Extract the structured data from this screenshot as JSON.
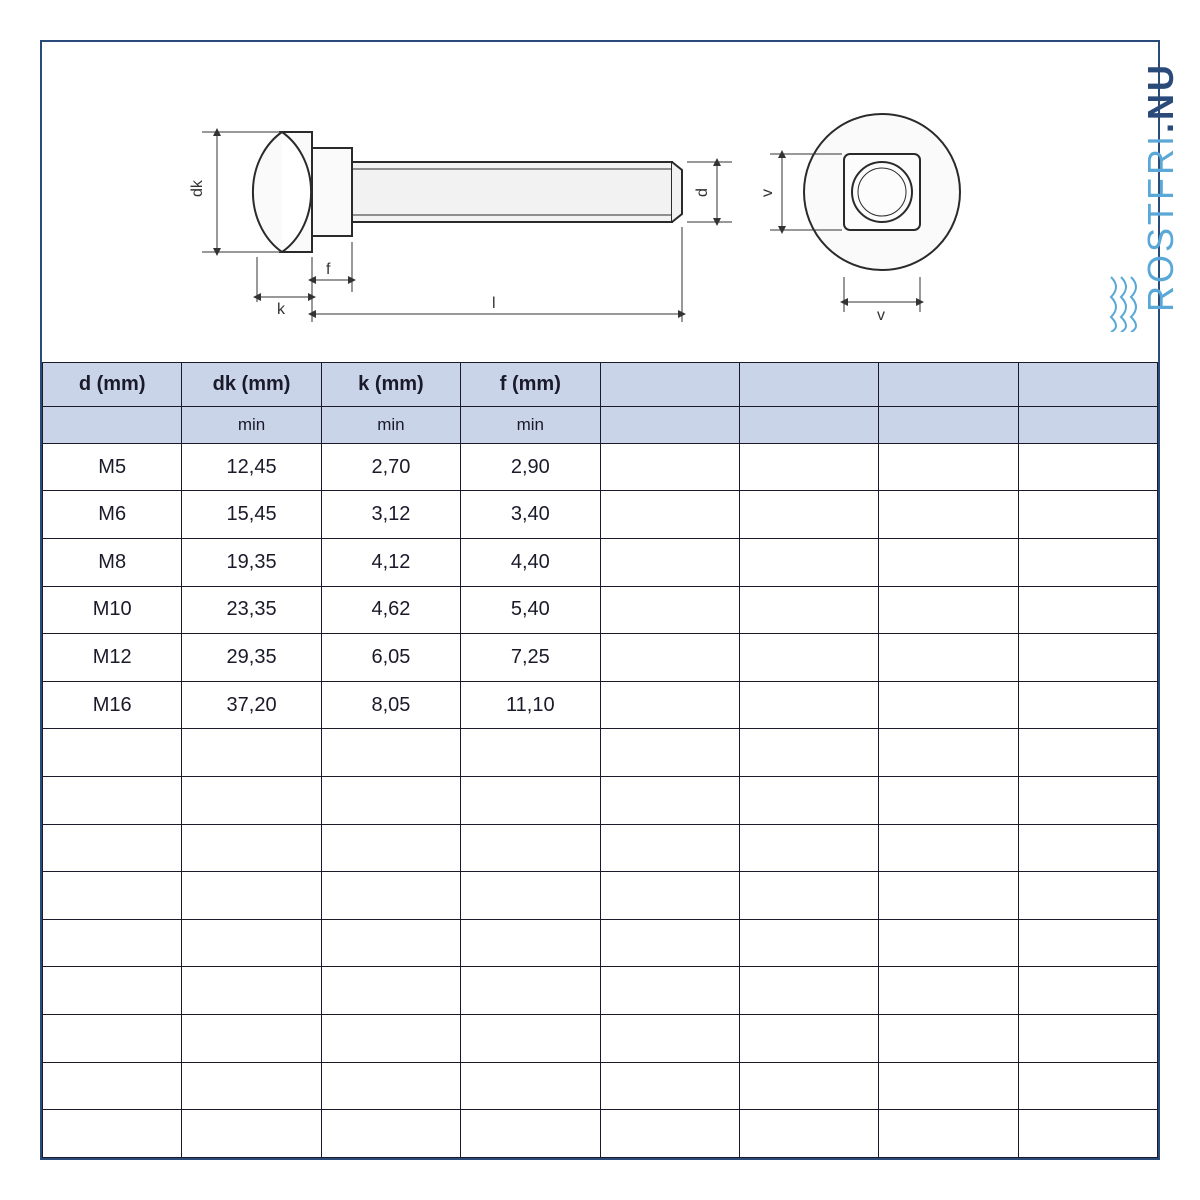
{
  "logo": {
    "main": "ROSTFRI",
    "dot": ".",
    "suffix": "NU"
  },
  "diagram": {
    "labels": {
      "dk": "dk",
      "k": "k",
      "f": "f",
      "l": "l",
      "d": "d",
      "v": "v"
    },
    "colors": {
      "stroke": "#2a2a2a",
      "fill_light": "#f8f8f8",
      "fill_grey": "#d0d0d0"
    }
  },
  "table": {
    "columns": [
      {
        "label": "d (mm)",
        "sub": ""
      },
      {
        "label": "dk (mm)",
        "sub": "min"
      },
      {
        "label": "k (mm)",
        "sub": "min"
      },
      {
        "label": "f (mm)",
        "sub": "min"
      },
      {
        "label": "",
        "sub": ""
      },
      {
        "label": "",
        "sub": ""
      },
      {
        "label": "",
        "sub": ""
      },
      {
        "label": "",
        "sub": ""
      }
    ],
    "rows": [
      [
        "M5",
        "12,45",
        "2,70",
        "2,90",
        "",
        "",
        "",
        ""
      ],
      [
        "M6",
        "15,45",
        "3,12",
        "3,40",
        "",
        "",
        "",
        ""
      ],
      [
        "M8",
        "19,35",
        "4,12",
        "4,40",
        "",
        "",
        "",
        ""
      ],
      [
        "M10",
        "23,35",
        "4,62",
        "5,40",
        "",
        "",
        "",
        ""
      ],
      [
        "M12",
        "29,35",
        "6,05",
        "7,25",
        "",
        "",
        "",
        ""
      ],
      [
        "M16",
        "37,20",
        "8,05",
        "11,10",
        "",
        "",
        "",
        ""
      ],
      [
        "",
        "",
        "",
        "",
        "",
        "",
        "",
        ""
      ],
      [
        "",
        "",
        "",
        "",
        "",
        "",
        "",
        ""
      ],
      [
        "",
        "",
        "",
        "",
        "",
        "",
        "",
        ""
      ],
      [
        "",
        "",
        "",
        "",
        "",
        "",
        "",
        ""
      ],
      [
        "",
        "",
        "",
        "",
        "",
        "",
        "",
        ""
      ],
      [
        "",
        "",
        "",
        "",
        "",
        "",
        "",
        ""
      ],
      [
        "",
        "",
        "",
        "",
        "",
        "",
        "",
        ""
      ],
      [
        "",
        "",
        "",
        "",
        "",
        "",
        "",
        ""
      ],
      [
        "",
        "",
        "",
        "",
        "",
        "",
        "",
        ""
      ]
    ],
    "header_bg": "#c9d4e8",
    "border_color": "#1a1a2a",
    "font_size": 20
  }
}
